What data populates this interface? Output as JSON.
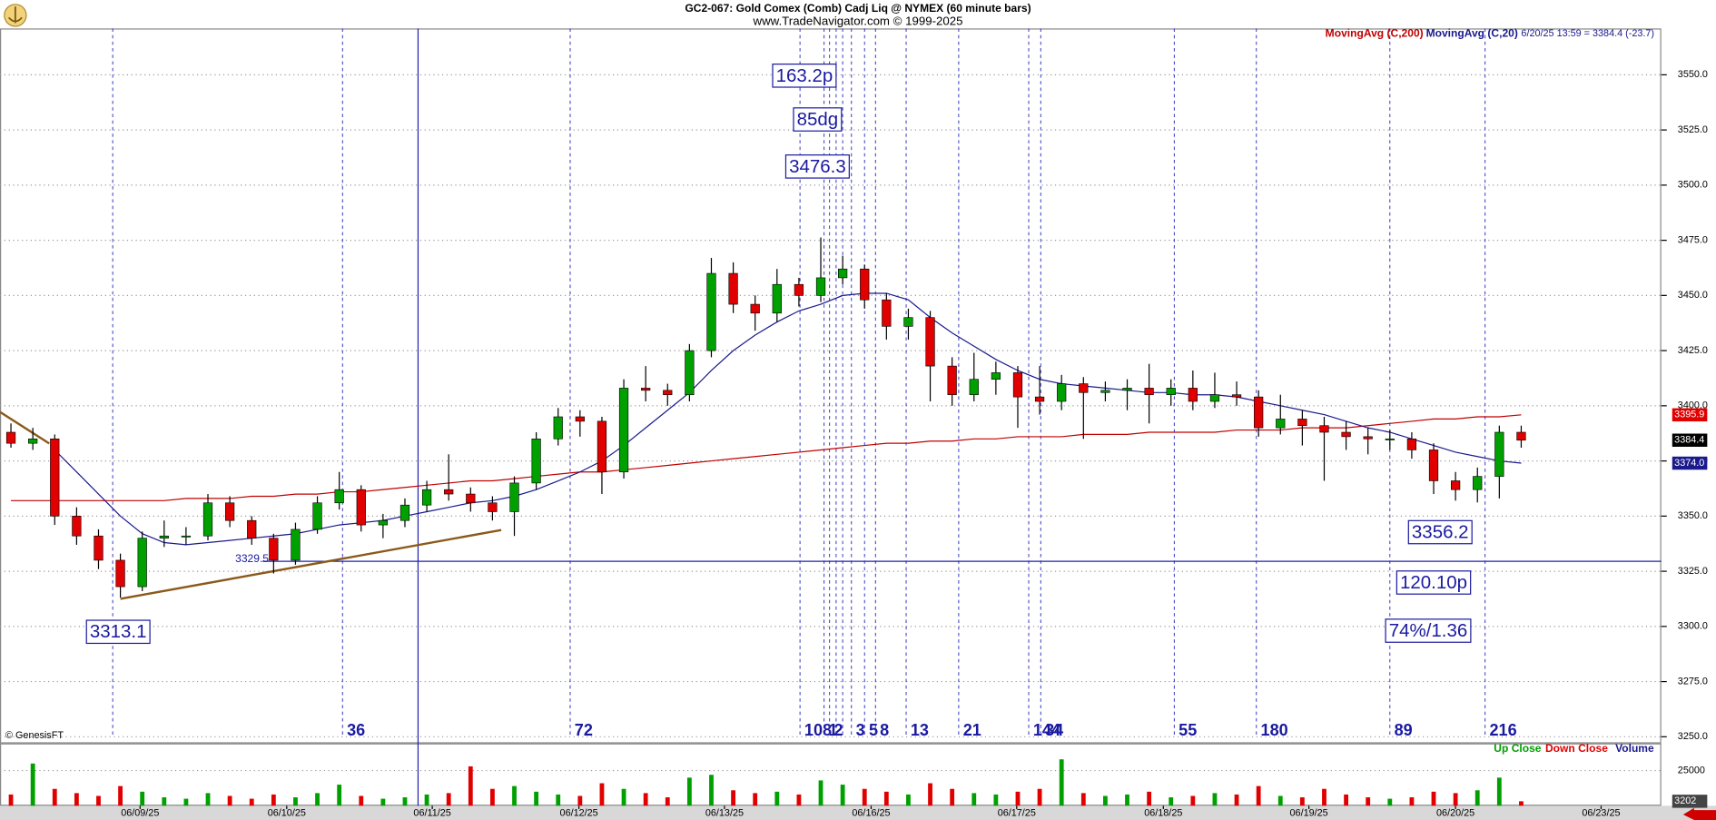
{
  "header": {
    "title": "GC2-067:  Gold Comex (Comb) Cadj Liq @ NYMEX  (60 minute bars)",
    "subtitle": "www.TradeNavigator.com © 1999-2025"
  },
  "chart_data": {
    "type": "candlestick",
    "up_color": "#00a000",
    "down_color": "#e00000",
    "xlim": [
      -0.5,
      75.4
    ],
    "ylim": [
      3247.5,
      3571
    ],
    "yticks": [
      {
        "value": 3250,
        "label": "3250.0"
      },
      {
        "value": 3275,
        "label": "3275.0"
      },
      {
        "value": 3300,
        "label": "3300.0"
      },
      {
        "value": 3325,
        "label": "3325.0"
      },
      {
        "value": 3350,
        "label": "3350.0"
      },
      {
        "value": 3375,
        "label": "3375.0"
      },
      {
        "value": 3400,
        "label": "3400.0"
      },
      {
        "value": 3425,
        "label": "3425.0"
      },
      {
        "value": 3450,
        "label": "3450.0"
      },
      {
        "value": 3475,
        "label": "3475.0"
      },
      {
        "value": 3500,
        "label": "3500.0"
      },
      {
        "value": 3525,
        "label": "3525.0"
      },
      {
        "value": 3550,
        "label": "3550.0"
      }
    ],
    "grid": true,
    "ohlc": [
      [
        3388,
        3392,
        3381,
        3383
      ],
      [
        3383,
        3390,
        3380,
        3385
      ],
      [
        3385,
        3387,
        3346,
        3350
      ],
      [
        3350,
        3354,
        3337,
        3341
      ],
      [
        3341,
        3344,
        3326,
        3330
      ],
      [
        3330,
        3333,
        3313.1,
        3318
      ],
      [
        3318,
        3343,
        3316,
        3340
      ],
      [
        3340,
        3348,
        3336,
        3341
      ],
      [
        3341,
        3345,
        3337,
        3341
      ],
      [
        3341,
        3360,
        3339,
        3356
      ],
      [
        3356,
        3359,
        3345,
        3348
      ],
      [
        3348,
        3350,
        3337,
        3340
      ],
      [
        3340,
        3342,
        3324,
        3330
      ],
      [
        3330,
        3347,
        3328,
        3344
      ],
      [
        3344,
        3359,
        3342,
        3356
      ],
      [
        3356,
        3370,
        3353,
        3362
      ],
      [
        3362,
        3364,
        3343,
        3346
      ],
      [
        3346,
        3351,
        3340,
        3348
      ],
      [
        3348,
        3358,
        3345,
        3355
      ],
      [
        3355,
        3366,
        3352,
        3362
      ],
      [
        3362,
        3378,
        3357,
        3360
      ],
      [
        3360,
        3363,
        3352,
        3356
      ],
      [
        3356,
        3359,
        3348,
        3352
      ],
      [
        3352,
        3368,
        3341,
        3365
      ],
      [
        3365,
        3388,
        3362,
        3385
      ],
      [
        3385,
        3399,
        3382,
        3395
      ],
      [
        3395,
        3398,
        3386,
        3393
      ],
      [
        3393,
        3395,
        3360,
        3370
      ],
      [
        3370,
        3412,
        3367,
        3408
      ],
      [
        3408,
        3418,
        3402,
        3407
      ],
      [
        3407,
        3410,
        3400,
        3405
      ],
      [
        3405,
        3428,
        3402,
        3425
      ],
      [
        3425,
        3467,
        3422,
        3460
      ],
      [
        3460,
        3465,
        3442,
        3446
      ],
      [
        3446,
        3450,
        3434,
        3442
      ],
      [
        3442,
        3462,
        3438,
        3455
      ],
      [
        3455,
        3458,
        3445,
        3450
      ],
      [
        3450,
        3476.3,
        3447,
        3458
      ],
      [
        3458,
        3468,
        3455,
        3462
      ],
      [
        3462,
        3464,
        3444,
        3448
      ],
      [
        3448,
        3451,
        3430,
        3436
      ],
      [
        3436,
        3444,
        3430,
        3440
      ],
      [
        3440,
        3443,
        3402,
        3418
      ],
      [
        3418,
        3422,
        3400,
        3405
      ],
      [
        3405,
        3424,
        3402,
        3412
      ],
      [
        3412,
        3420,
        3405,
        3415
      ],
      [
        3415,
        3418,
        3390,
        3404
      ],
      [
        3404,
        3418,
        3396,
        3402
      ],
      [
        3402,
        3414,
        3398,
        3410
      ],
      [
        3410,
        3413,
        3385,
        3406
      ],
      [
        3406,
        3411,
        3402,
        3407
      ],
      [
        3407,
        3412,
        3398,
        3408
      ],
      [
        3408,
        3419,
        3392,
        3405
      ],
      [
        3405,
        3412,
        3400,
        3408
      ],
      [
        3408,
        3416,
        3398,
        3402
      ],
      [
        3402,
        3415,
        3399,
        3405
      ],
      [
        3405,
        3411,
        3400,
        3404
      ],
      [
        3404,
        3407,
        3386,
        3390
      ],
      [
        3390,
        3405,
        3387,
        3394
      ],
      [
        3394,
        3398,
        3382,
        3391
      ],
      [
        3391,
        3395,
        3366,
        3388
      ],
      [
        3388,
        3393,
        3380,
        3386
      ],
      [
        3386,
        3390,
        3378,
        3385
      ],
      [
        3385,
        3389,
        3380,
        3385
      ],
      [
        3385,
        3388,
        3376,
        3380
      ],
      [
        3380,
        3383,
        3360,
        3366
      ],
      [
        3366,
        3370,
        3357,
        3362
      ],
      [
        3362,
        3372,
        3356.2,
        3368
      ],
      [
        3368,
        3391,
        3358,
        3388
      ],
      [
        3388,
        3391,
        3381,
        3384.4
      ]
    ],
    "moving_averages": [
      {
        "name": "MovingAvg (C,200)",
        "color": "#c00000",
        "values": [
          3357,
          3357,
          3357,
          3357,
          3357,
          3357,
          3357,
          3357,
          3358,
          3358,
          3358,
          3359,
          3359,
          3360,
          3360,
          3361,
          3361,
          3362,
          3363,
          3364,
          3365,
          3366,
          3366,
          3367,
          3368,
          3369,
          3370,
          3370,
          3371,
          3372,
          3373,
          3374,
          3375,
          3376,
          3377,
          3378,
          3379,
          3380,
          3381,
          3382,
          3383,
          3383,
          3384,
          3384,
          3385,
          3385,
          3386,
          3386,
          3386,
          3387,
          3387,
          3387,
          3388,
          3388,
          3388,
          3388,
          3389,
          3389,
          3389,
          3390,
          3390,
          3390,
          3391,
          3392,
          3393,
          3394,
          3394,
          3395,
          3395,
          3395.9
        ]
      },
      {
        "name": "MovingAvg (C,20)",
        "color": "#1a1a8c",
        "values": [
          null,
          null,
          3380,
          3370,
          3360,
          3350,
          3342,
          3338,
          3337,
          3338,
          3339,
          3340,
          3341,
          3342,
          3344,
          3346,
          3347,
          3348,
          3350,
          3352,
          3354,
          3356,
          3357,
          3359,
          3362,
          3366,
          3370,
          3375,
          3382,
          3390,
          3398,
          3406,
          3416,
          3425,
          3432,
          3438,
          3443,
          3446,
          3450,
          3451,
          3451,
          3448,
          3440,
          3433,
          3427,
          3421,
          3416,
          3412,
          3410,
          3409,
          3408,
          3407,
          3406,
          3406,
          3405,
          3405,
          3404,
          3402,
          3400,
          3398,
          3396,
          3393,
          3390,
          3388,
          3385,
          3382,
          3379,
          3377,
          3375,
          3374
        ]
      }
    ],
    "status": "6/20/25 13:59 = 3384.4 (-23.7)",
    "axis_markers": [
      {
        "value": 3395.9,
        "label": "3395.9",
        "color": "#e00000"
      },
      {
        "value": 3384.4,
        "label": "3384.4",
        "color": "#000000"
      },
      {
        "value": 3374,
        "label": "3374.0",
        "color": "#1a1a8c"
      }
    ],
    "volume": {
      "values": [
        8000,
        30000,
        12000,
        9000,
        7000,
        14000,
        10000,
        6000,
        5000,
        9000,
        7000,
        5000,
        8000,
        6000,
        9000,
        15000,
        7000,
        5000,
        6000,
        8000,
        9000,
        28000,
        12000,
        14000,
        10000,
        8000,
        7000,
        16000,
        12000,
        9000,
        6000,
        20000,
        22000,
        11000,
        9000,
        10000,
        8000,
        18000,
        15000,
        12000,
        10000,
        8000,
        16000,
        12000,
        9000,
        8000,
        10000,
        12000,
        33000,
        9000,
        7000,
        8000,
        10000,
        6000,
        7000,
        9000,
        8000,
        14000,
        7000,
        6000,
        12000,
        8000,
        6000,
        5000,
        6000,
        10000,
        9000,
        11000,
        20000,
        3202
      ],
      "ylim": [
        0,
        42000
      ],
      "yticks": [
        25000
      ],
      "legend": [
        "Up Close",
        "Down Close",
        "Volume"
      ]
    },
    "date_ticks": [
      {
        "value": 5.9,
        "label": "06/09/25"
      },
      {
        "value": 12.6,
        "label": "06/10/25"
      },
      {
        "value": 19.25,
        "label": "06/11/25"
      },
      {
        "value": 25.95,
        "label": "06/12/25"
      },
      {
        "value": 32.6,
        "label": "06/13/25"
      },
      {
        "value": 39.3,
        "label": "06/16/25"
      },
      {
        "value": 45.95,
        "label": "06/17/25"
      },
      {
        "value": 52.65,
        "label": "06/18/25"
      },
      {
        "value": 59.3,
        "label": "06/19/25"
      },
      {
        "value": 66,
        "label": "06/20/25"
      },
      {
        "value": 72.65,
        "label": "06/23/25"
      }
    ],
    "cycle_lines": [
      {
        "bar": 4.65
      },
      {
        "bar": 15.15,
        "label": "36"
      },
      {
        "bar": 25.55,
        "label": "72"
      },
      {
        "bar": 36.05,
        "label": "108"
      },
      {
        "bar": 37.15,
        "label": "1"
      },
      {
        "bar": 37.4,
        "label": "2"
      },
      {
        "bar": 37.7
      },
      {
        "bar": 38
      },
      {
        "bar": 38.4,
        "label": "3"
      },
      {
        "bar": 39,
        "label": "5"
      },
      {
        "bar": 39.5,
        "label": "8"
      },
      {
        "bar": 40.9,
        "label": "13"
      },
      {
        "bar": 43.3,
        "label": "21"
      },
      {
        "bar": 46.5,
        "label": "144"
      },
      {
        "bar": 47.05,
        "label": "34"
      },
      {
        "bar": 53.15,
        "label": "55"
      },
      {
        "bar": 56.9,
        "label": "180"
      },
      {
        "bar": 63,
        "label": "89"
      },
      {
        "bar": 67.35,
        "label": "216"
      }
    ],
    "marker_line": 18.6,
    "support_line": 3329.5,
    "trendlines": [
      [
        [
          -0.5,
          3397.2
        ],
        [
          1.75,
          3382.9
        ]
      ],
      [
        [
          5,
          3312.5
        ],
        [
          22.4,
          3343.7
        ]
      ]
    ],
    "annotations": [
      "163.2p",
      "85dg",
      "120.10p",
      "74%/1.36"
    ],
    "copyright": "© GenesisFT"
  }
}
